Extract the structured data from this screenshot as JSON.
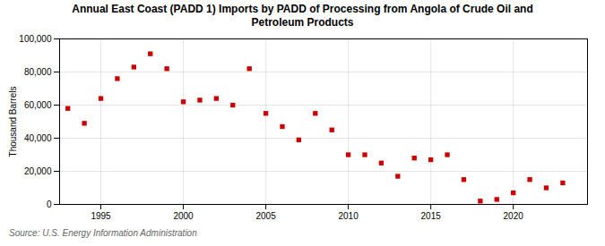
{
  "chart_data": {
    "type": "scatter",
    "title": "Annual East Coast (PADD 1) Imports by PADD of Processing from Angola of Crude Oil and\nPetroleum Products",
    "ylabel": "Thousand Barrels",
    "source": "Source: U.S. Energy Information Administration",
    "x": [
      1993,
      1994,
      1995,
      1996,
      1997,
      1998,
      1999,
      2000,
      2001,
      2002,
      2003,
      2004,
      2005,
      2006,
      2007,
      2008,
      2009,
      2010,
      2011,
      2012,
      2013,
      2014,
      2015,
      2016,
      2017,
      2018,
      2019,
      2020,
      2021,
      2022,
      2023
    ],
    "values": [
      58000,
      49000,
      64000,
      76000,
      83000,
      91000,
      82000,
      62000,
      63000,
      64000,
      60000,
      82000,
      55000,
      47000,
      39000,
      55000,
      45000,
      30000,
      30000,
      25000,
      17000,
      28000,
      27000,
      30000,
      15000,
      2000,
      3000,
      7000,
      15000,
      10000,
      13000
    ],
    "color": "#cc0000",
    "marker": "square",
    "xlim": [
      1992.5,
      2024.5
    ],
    "xticks": [
      1995,
      2000,
      2005,
      2010,
      2015,
      2020
    ],
    "ylim": [
      0,
      100000
    ],
    "yticks": [
      0,
      {
        "value": 20000,
        "label": "20,000"
      },
      {
        "value": 40000,
        "label": "40,000"
      },
      {
        "value": 60000,
        "label": "60,000"
      },
      {
        "value": 80000,
        "label": "80,000"
      },
      {
        "value": 100000,
        "label": "100,000"
      }
    ],
    "grid": true
  }
}
